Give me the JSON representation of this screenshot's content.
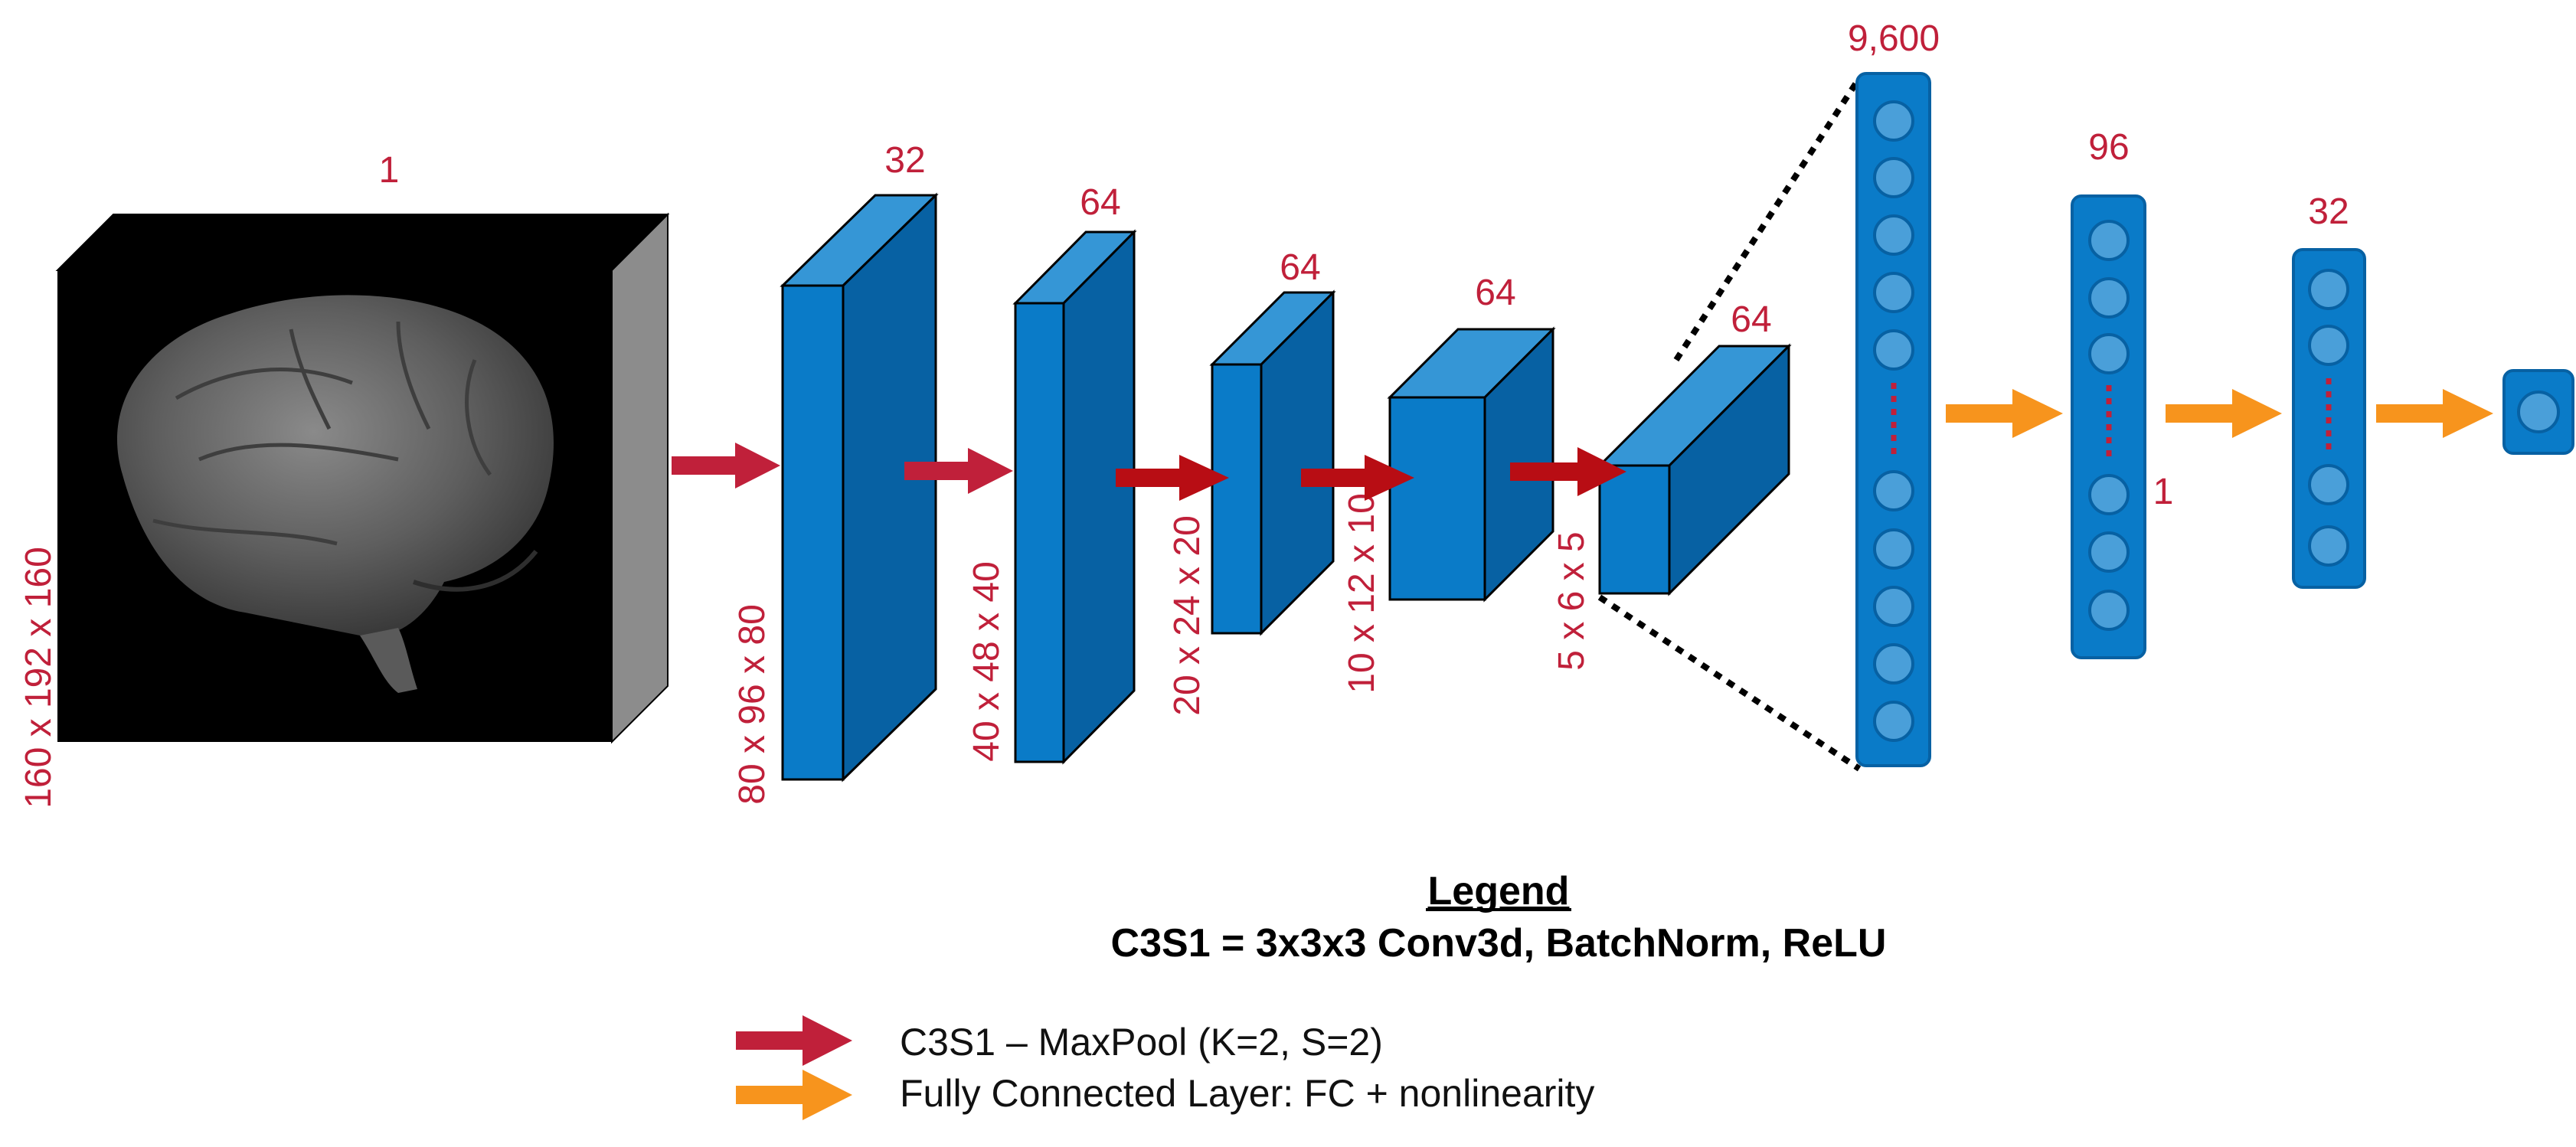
{
  "diagram": {
    "input": {
      "channels": "1",
      "dims": "160 x 192 x 160"
    },
    "conv_blocks": [
      {
        "channels": "32",
        "dims": "80 x 96 x 80"
      },
      {
        "channels": "64",
        "dims": "40 x 48 x 40"
      },
      {
        "channels": "64",
        "dims": "20 x 24 x 20"
      },
      {
        "channels": "64",
        "dims": "10 x 12 x 10"
      },
      {
        "channels": "64",
        "dims": "5 x 6 x 5"
      }
    ],
    "fc_layers": [
      {
        "units": "9,600"
      },
      {
        "units": "96"
      },
      {
        "units": "32"
      }
    ],
    "output_units": "1"
  },
  "legend": {
    "title": "Legend",
    "definition": "C3S1 = 3x3x3 Conv3d, BatchNorm, ReLU",
    "items": [
      {
        "label": "C3S1 – MaxPool (K=2, S=2)",
        "color": "#c0203a"
      },
      {
        "label": "Fully Connected Layer: FC + nonlinearity",
        "color": "#f7941d"
      }
    ]
  },
  "colors": {
    "label": "#c0203a",
    "block_front": "#0a7bc8",
    "block_top": "#3596d6",
    "block_side": "#0761a3",
    "pool_arrow": "#c0203a",
    "fc_arrow": "#f7941d",
    "neuron": "#4a9fd9"
  }
}
